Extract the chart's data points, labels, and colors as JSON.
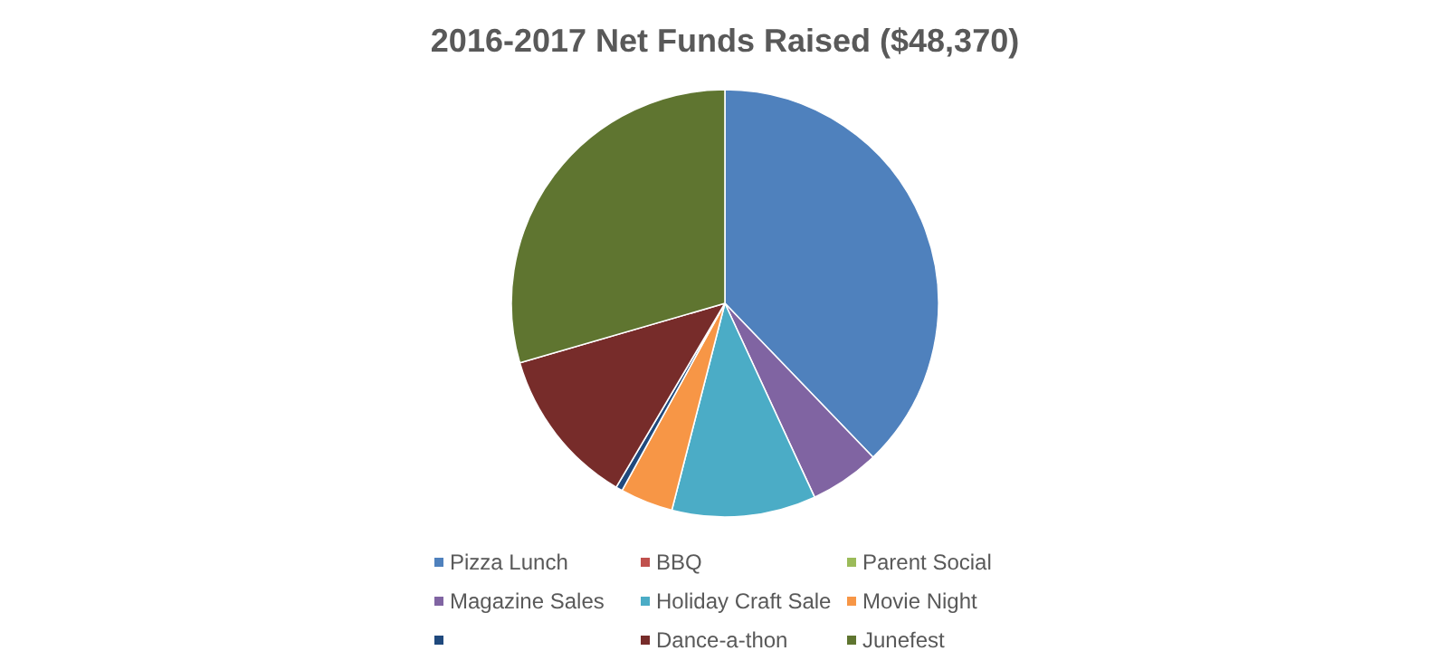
{
  "chart_data": {
    "type": "pie",
    "title": "2016-2017 Net Funds Raised ($48,370)",
    "categories": [
      "Pizza Lunch",
      "BBQ",
      "Parent Social",
      "Magazine Sales",
      "Holiday Craft Sale",
      "Movie Night",
      null,
      "Dance-a-thon",
      "Junefest"
    ],
    "values": [
      37.8,
      0,
      0,
      5.3,
      10.9,
      4,
      0.5,
      12,
      29.5
    ],
    "colors": [
      "#4f81bd",
      "#c0504d",
      "#9bbb59",
      "#8064a2",
      "#4bacc6",
      "#f79646",
      "#1f497d",
      "#772c2a",
      "#5f7530"
    ],
    "legend": "bottom"
  }
}
